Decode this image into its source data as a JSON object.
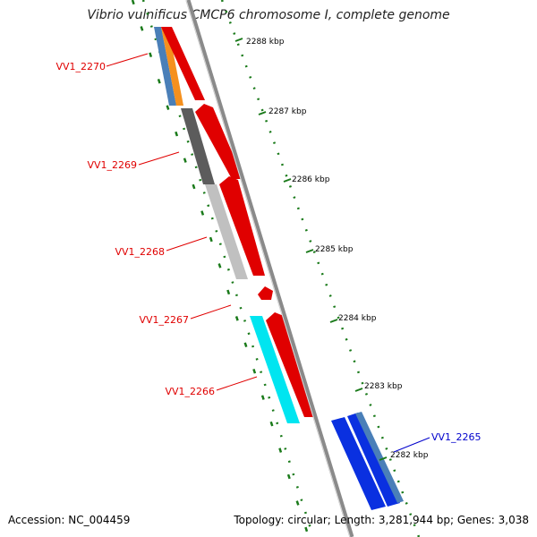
{
  "title": "Vibrio vulnificus CMCP6 chromosome I, complete genome",
  "accession": "Accession: NC_004459",
  "topology": "Topology: circular; Length: 3,281,944 bp; Genes: 3,038",
  "colors": {
    "backbone": "#8a8a8a",
    "ticks": "#1a7a1a",
    "gene_label": "#e00000",
    "highlight_label": "#0000cc"
  },
  "scale": {
    "unit": "kbp",
    "labels": [
      "2288 kbp",
      "2287 kbp",
      "2286 kbp",
      "2285 kbp",
      "2284 kbp",
      "2283 kbp",
      "2282 kbp"
    ]
  },
  "genes": [
    {
      "label": "VV1_2270",
      "strand": "reverse",
      "color": "#e00000",
      "highlight": false
    },
    {
      "label": "VV1_2269",
      "strand": "reverse",
      "color": "#e00000",
      "highlight": false
    },
    {
      "label": "VV1_2268",
      "strand": "reverse",
      "color": "#e00000",
      "highlight": false
    },
    {
      "label": "VV1_2267",
      "strand": "reverse",
      "color": "#e00000",
      "highlight": false
    },
    {
      "label": "VV1_2266",
      "strand": "reverse",
      "color": "#e00000",
      "highlight": false
    },
    {
      "label": "VV1_2265",
      "strand": "reverse",
      "color": "#0000cc",
      "highlight": true
    }
  ]
}
